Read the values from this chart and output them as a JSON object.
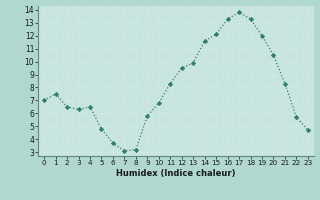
{
  "xlabel": "Humidex (Indice chaleur)",
  "x": [
    0,
    1,
    2,
    3,
    4,
    5,
    6,
    7,
    8,
    9,
    10,
    11,
    12,
    13,
    14,
    15,
    16,
    17,
    18,
    19,
    20,
    21,
    22,
    23
  ],
  "y": [
    7.0,
    7.5,
    6.5,
    6.3,
    6.5,
    4.8,
    3.7,
    3.1,
    3.2,
    5.8,
    6.8,
    8.3,
    9.5,
    9.9,
    11.6,
    12.1,
    13.3,
    13.8,
    13.3,
    12.0,
    10.5,
    8.3,
    5.7,
    4.7
  ],
  "ylim_min": 3,
  "ylim_max": 14,
  "xlim_min": 0,
  "xlim_max": 23,
  "yticks": [
    3,
    4,
    5,
    6,
    7,
    8,
    9,
    10,
    11,
    12,
    13,
    14
  ],
  "xticks": [
    0,
    1,
    2,
    3,
    4,
    5,
    6,
    7,
    8,
    9,
    10,
    11,
    12,
    13,
    14,
    15,
    16,
    17,
    18,
    19,
    20,
    21,
    22,
    23
  ],
  "line_color": "#2e7d6e",
  "marker_color": "#2e7d6e",
  "bg_color": "#b0d8d0",
  "grid_color": "#d0e8e4",
  "axes_bg": "#c8e4de"
}
